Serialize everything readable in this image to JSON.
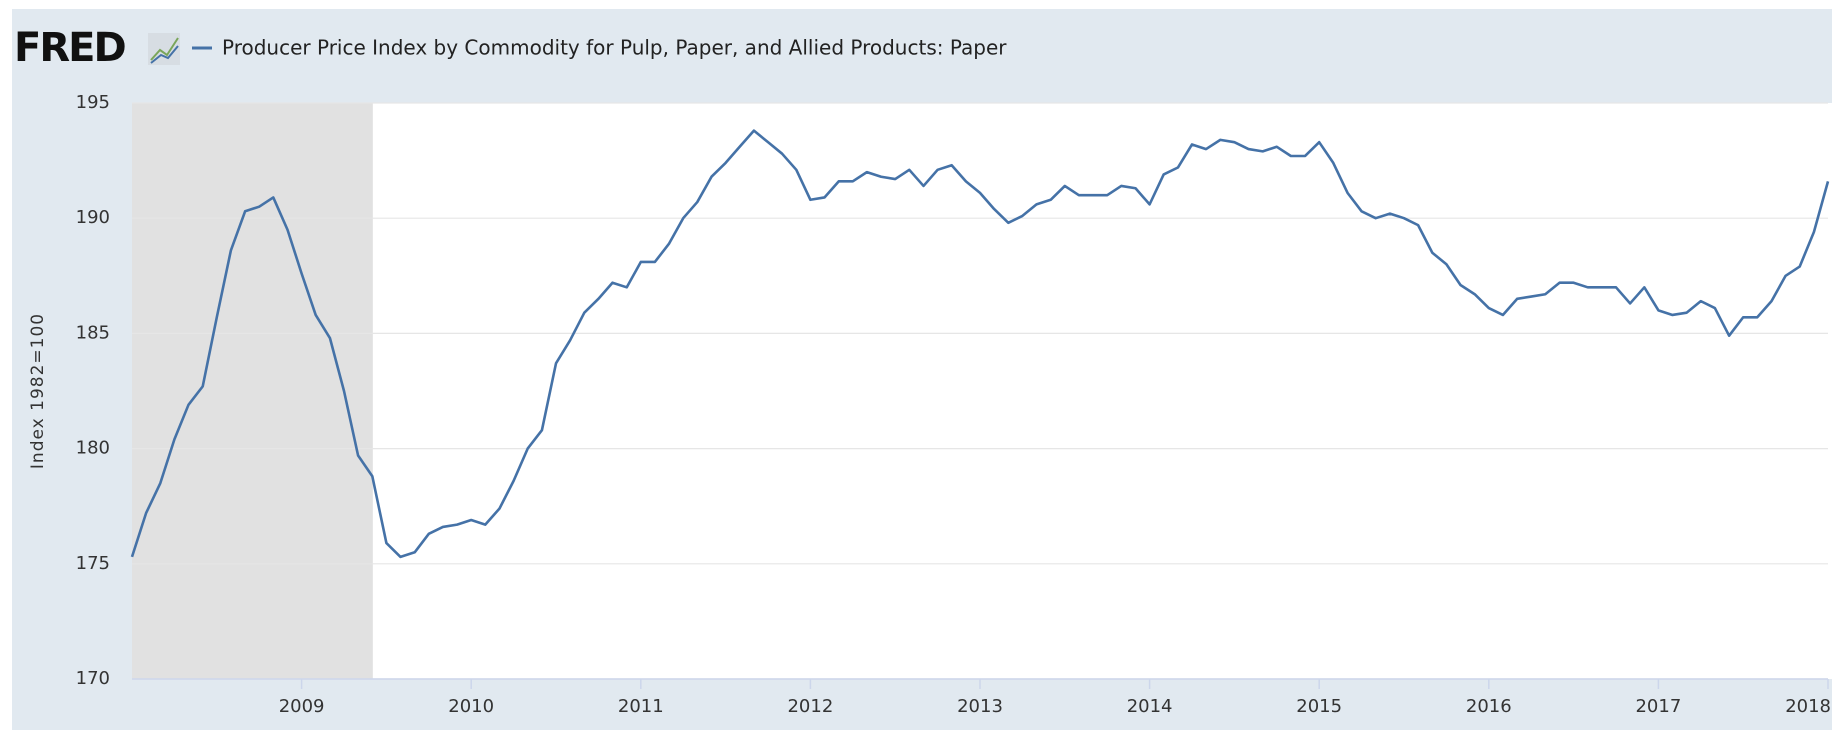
{
  "logo": "FRED",
  "chart_data": {
    "type": "line",
    "series": [
      {
        "name": "Producer Price Index by Commodity for Pulp, Paper, and Allied Products: Paper",
        "color": "#4572a7",
        "values": [
          175.3,
          177.2,
          178.5,
          180.4,
          181.9,
          182.7,
          185.7,
          188.6,
          190.3,
          190.5,
          190.9,
          189.5,
          187.6,
          185.8,
          184.8,
          182.5,
          179.7,
          178.8,
          175.9,
          175.3,
          175.5,
          176.3,
          176.6,
          176.7,
          176.9,
          176.7,
          177.4,
          178.6,
          180.0,
          180.8,
          183.7,
          184.7,
          185.9,
          186.5,
          187.2,
          187.0,
          188.1,
          188.1,
          188.9,
          190.0,
          190.7,
          191.8,
          192.4,
          193.1,
          193.8,
          193.3,
          192.8,
          192.1,
          190.8,
          190.9,
          191.6,
          191.6,
          192.0,
          191.8,
          191.7,
          192.1,
          191.4,
          192.1,
          192.3,
          191.6,
          191.1,
          190.4,
          189.8,
          190.1,
          190.6,
          190.8,
          191.4,
          191.0,
          191.0,
          191.0,
          191.4,
          191.3,
          190.6,
          191.9,
          192.2,
          193.2,
          193.0,
          193.4,
          193.3,
          193.0,
          192.9,
          193.1,
          192.7,
          192.7,
          193.3,
          192.4,
          191.1,
          190.3,
          190.0,
          190.2,
          190.0,
          189.7,
          188.5,
          188.0,
          187.1,
          186.7,
          186.1,
          185.8,
          186.5,
          186.6,
          186.7,
          187.2,
          187.2,
          187.0,
          187.0,
          187.0,
          186.3,
          187.0,
          186.0,
          185.8,
          185.9,
          186.4,
          186.1,
          184.9,
          185.7,
          185.7,
          186.4,
          187.5,
          187.9,
          189.4,
          191.6
        ]
      }
    ],
    "x": [
      2008,
      2008.083,
      2008.167,
      2008.25,
      2008.333,
      2008.417,
      2008.5,
      2008.583,
      2008.667,
      2008.75,
      2008.833,
      2008.917,
      2009,
      2009.083,
      2009.167,
      2009.25,
      2009.333,
      2009.417,
      2009.5,
      2009.583,
      2009.667,
      2009.75,
      2009.833,
      2009.917,
      2010,
      2010.083,
      2010.167,
      2010.25,
      2010.333,
      2010.417,
      2010.5,
      2010.583,
      2010.667,
      2010.75,
      2010.833,
      2010.917,
      2011,
      2011.083,
      2011.167,
      2011.25,
      2011.333,
      2011.417,
      2011.5,
      2011.583,
      2011.667,
      2011.75,
      2011.833,
      2011.917,
      2012,
      2012.083,
      2012.167,
      2012.25,
      2012.333,
      2012.417,
      2012.5,
      2012.583,
      2012.667,
      2012.75,
      2012.833,
      2012.917,
      2013,
      2013.083,
      2013.167,
      2013.25,
      2013.333,
      2013.417,
      2013.5,
      2013.583,
      2013.667,
      2013.75,
      2013.833,
      2013.917,
      2014,
      2014.083,
      2014.167,
      2014.25,
      2014.333,
      2014.417,
      2014.5,
      2014.583,
      2014.667,
      2014.75,
      2014.833,
      2014.917,
      2015,
      2015.083,
      2015.167,
      2015.25,
      2015.333,
      2015.417,
      2015.5,
      2015.583,
      2015.667,
      2015.75,
      2015.833,
      2015.917,
      2016,
      2016.083,
      2016.167,
      2016.25,
      2016.333,
      2016.417,
      2016.5,
      2016.583,
      2016.667,
      2016.75,
      2016.833,
      2016.917,
      2017,
      2017.083,
      2017.167,
      2017.25,
      2017.333,
      2017.417,
      2017.5,
      2017.583,
      2017.667,
      2017.75,
      2017.833,
      2017.917,
      2018
    ],
    "xlim": [
      2008,
      2018
    ],
    "xticks": [
      2009,
      2010,
      2011,
      2012,
      2013,
      2014,
      2015,
      2016,
      2017,
      2018
    ],
    "ylim": [
      170,
      195
    ],
    "yticks": [
      170,
      175,
      180,
      185,
      190,
      195
    ],
    "ylabel": "Index 1982=100",
    "shade_x": [
      2008,
      2009.42
    ],
    "grid": true
  }
}
